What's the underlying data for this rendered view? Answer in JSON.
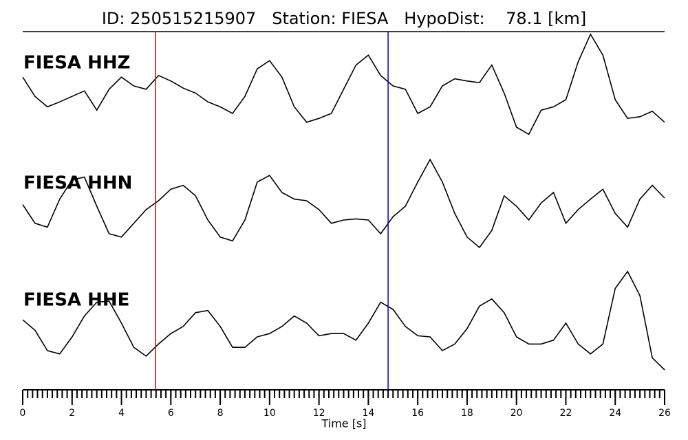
{
  "chart_data": {
    "type": "line",
    "title": "ID: 250515215907   Station: FIESA   HypoDist:    78.1 [km]",
    "xlabel": "Time [s]",
    "xlim": [
      0,
      26
    ],
    "xticks": [
      0,
      2,
      4,
      6,
      8,
      10,
      12,
      14,
      16,
      18,
      20,
      22,
      24,
      26
    ],
    "minor_tick_step": 0.2,
    "ylim": [
      -1,
      1
    ],
    "label_color": "#4a9a0f",
    "picks": [
      {
        "time": 5.38,
        "color": "#e00000"
      },
      {
        "time": 14.8,
        "color": "#0000c8"
      }
    ],
    "x": [
      0,
      0.5,
      1,
      1.5,
      2,
      2.5,
      3,
      3.5,
      4,
      4.5,
      5,
      5.5,
      6,
      6.5,
      7,
      7.5,
      8,
      8.5,
      9,
      9.5,
      10,
      10.5,
      11,
      11.5,
      12,
      12.5,
      13,
      13.5,
      14,
      14.5,
      15,
      15.5,
      16,
      16.5,
      17,
      17.5,
      18,
      18.5,
      19,
      19.5,
      20,
      20.5,
      21,
      21.5,
      22,
      22.5,
      23,
      23.5,
      24,
      24.5,
      25,
      25.5,
      26
    ],
    "series": [
      {
        "name": "FIESA HHZ",
        "color": "#000000",
        "values": [
          0.16,
          -0.19,
          -0.38,
          -0.29,
          -0.19,
          -0.09,
          -0.44,
          -0.06,
          0.16,
          0,
          -0.06,
          0.19,
          0.09,
          -0.04,
          -0.13,
          -0.29,
          -0.38,
          -0.5,
          -0.19,
          0.31,
          0.46,
          0.16,
          -0.38,
          -0.66,
          -0.59,
          -0.5,
          -0.06,
          0.38,
          0.56,
          0.19,
          0,
          -0.06,
          -0.5,
          -0.38,
          0,
          0.13,
          0.09,
          0.06,
          0.38,
          -0.13,
          -0.75,
          -0.88,
          -0.44,
          -0.38,
          -0.25,
          0.44,
          0.94,
          0.56,
          -0.25,
          -0.59,
          -0.56,
          -0.46,
          -0.66
        ]
      },
      {
        "name": "FIESA HHN",
        "color": "#000000",
        "values": [
          0.03,
          -0.31,
          -0.38,
          0.13,
          0.48,
          0.53,
          0,
          -0.5,
          -0.56,
          -0.31,
          -0.06,
          0.1,
          0.31,
          0.38,
          0.19,
          -0.25,
          -0.56,
          -0.63,
          -0.25,
          0.44,
          0.56,
          0.25,
          0.13,
          0.1,
          -0.06,
          -0.31,
          -0.25,
          -0.23,
          -0.25,
          -0.5,
          -0.19,
          0,
          0.44,
          0.85,
          0.44,
          -0.13,
          -0.56,
          -0.75,
          -0.44,
          0.19,
          0,
          -0.25,
          0.06,
          0.25,
          -0.31,
          -0.06,
          0.13,
          0.31,
          -0.13,
          -0.38,
          0.13,
          0.38,
          0.15
        ]
      },
      {
        "name": "FIESA HHE",
        "color": "#000000",
        "values": [
          0.06,
          -0.13,
          -0.5,
          -0.56,
          -0.25,
          0.13,
          0.38,
          0.4,
          0,
          -0.44,
          -0.6,
          -0.38,
          -0.19,
          -0.06,
          0.19,
          0.23,
          -0.06,
          -0.44,
          -0.44,
          -0.25,
          -0.19,
          -0.06,
          0.13,
          0,
          -0.23,
          -0.19,
          -0.19,
          -0.31,
          0,
          0.38,
          0.25,
          -0.06,
          -0.23,
          -0.25,
          -0.5,
          -0.38,
          -0.1,
          0.31,
          0.44,
          0.19,
          -0.25,
          -0.38,
          -0.38,
          -0.31,
          0,
          -0.38,
          -0.56,
          -0.38,
          0.63,
          0.94,
          0.5,
          -0.63,
          -0.85
        ]
      }
    ]
  }
}
